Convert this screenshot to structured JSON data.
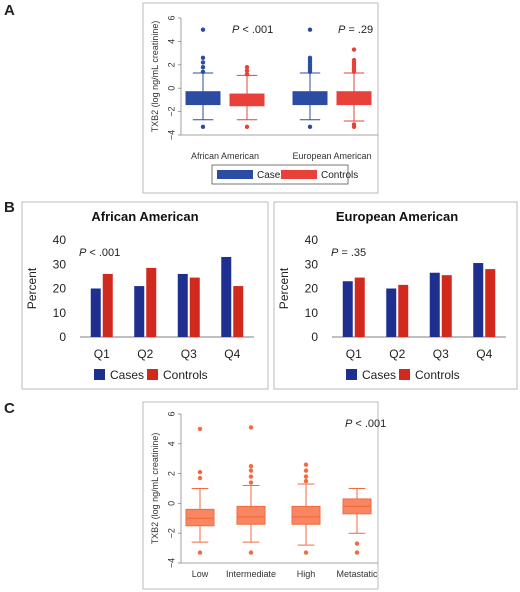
{
  "panels": {
    "A": "A",
    "B": "B",
    "C": "C"
  },
  "colors": {
    "cases": "#2b4ca3",
    "controls": "#e8413a",
    "cases_bar": "#1f2f8f",
    "controls_bar": "#d2291f",
    "c_fill": "#f98660",
    "c_stroke": "#f26a3f"
  },
  "chart_data": [
    {
      "id": "A",
      "type": "box",
      "ylabel": "TXB2 (log ng/mL creatinine)",
      "ylim": [
        -4,
        6
      ],
      "yticks": [
        -4,
        -2,
        0,
        2,
        4,
        6
      ],
      "groups": [
        "African American",
        "European American"
      ],
      "pvalues": [
        {
          "prefix": "P",
          "rest": " < .001"
        },
        {
          "prefix": "P",
          "rest": " = .29"
        }
      ],
      "legend": [
        "Cases",
        "Controls"
      ],
      "series": [
        {
          "name": "Cases",
          "boxes": [
            {
              "min": -2.7,
              "q1": -1.4,
              "median": -0.9,
              "q3": -0.3,
              "max": 1.3,
              "outliers": [
                -3.3,
                1.4,
                1.8,
                2.2,
                2.6,
                5.0
              ]
            },
            {
              "min": -2.7,
              "q1": -1.4,
              "median": -0.9,
              "q3": -0.3,
              "max": 1.3,
              "outliers": [
                -3.3,
                1.4,
                1.6,
                1.8,
                2.0,
                2.2,
                2.4,
                2.6,
                5.0
              ]
            }
          ]
        },
        {
          "name": "Controls",
          "boxes": [
            {
              "min": -2.7,
              "q1": -1.5,
              "median": -1.0,
              "q3": -0.5,
              "max": 1.1,
              "outliers": [
                -3.3,
                1.2,
                1.5,
                1.8
              ]
            },
            {
              "min": -2.8,
              "q1": -1.4,
              "median": -0.9,
              "q3": -0.3,
              "max": 1.3,
              "outliers": [
                -3.3,
                -3.1,
                1.4,
                1.6,
                1.8,
                2.0,
                2.2,
                2.4,
                3.3
              ]
            }
          ]
        }
      ]
    },
    {
      "id": "B1",
      "type": "bar",
      "title": "African American",
      "ylabel": "Percent",
      "ylim": [
        0,
        40
      ],
      "yticks": [
        0,
        10,
        20,
        30,
        40
      ],
      "categories": [
        "Q1",
        "Q2",
        "Q3",
        "Q4"
      ],
      "pvalue": {
        "prefix": "P",
        "rest": " < .001"
      },
      "series": [
        {
          "name": "Cases",
          "values": [
            20,
            21,
            26,
            33
          ]
        },
        {
          "name": "Controls",
          "values": [
            26,
            28.5,
            24.5,
            21
          ]
        }
      ]
    },
    {
      "id": "B2",
      "type": "bar",
      "title": "European American",
      "ylabel": "Percent",
      "ylim": [
        0,
        40
      ],
      "yticks": [
        0,
        10,
        20,
        30,
        40
      ],
      "categories": [
        "Q1",
        "Q2",
        "Q3",
        "Q4"
      ],
      "pvalue": {
        "prefix": "P",
        "rest": " = .35"
      },
      "series": [
        {
          "name": "Cases",
          "values": [
            23,
            20,
            26.5,
            30.5
          ]
        },
        {
          "name": "Controls",
          "values": [
            24.5,
            21.5,
            25.5,
            28
          ]
        }
      ]
    },
    {
      "id": "C",
      "type": "box",
      "ylabel": "TXB2 (log ng/mL creatinine)",
      "ylim": [
        -4,
        6
      ],
      "yticks": [
        -4,
        -2,
        0,
        2,
        4,
        6
      ],
      "categories": [
        "Low",
        "Intermediate",
        "High",
        "Metastatic"
      ],
      "pvalue": {
        "prefix": "P",
        "rest": " < .001"
      },
      "boxes": [
        {
          "min": -2.6,
          "q1": -1.5,
          "median": -1.0,
          "q3": -0.4,
          "max": 1.0,
          "outliers": [
            -3.3,
            1.7,
            2.1,
            5.0
          ]
        },
        {
          "min": -2.6,
          "q1": -1.4,
          "median": -0.9,
          "q3": -0.2,
          "max": 1.2,
          "outliers": [
            -3.3,
            1.4,
            1.8,
            2.2,
            2.5,
            5.1
          ]
        },
        {
          "min": -2.8,
          "q1": -1.4,
          "median": -0.9,
          "q3": -0.2,
          "max": 1.3,
          "outliers": [
            -3.3,
            1.5,
            1.8,
            2.2,
            2.6
          ]
        },
        {
          "min": -2.0,
          "q1": -0.7,
          "median": -0.2,
          "q3": 0.3,
          "max": 1.0,
          "outliers": [
            -2.7,
            -3.3
          ]
        }
      ]
    }
  ]
}
